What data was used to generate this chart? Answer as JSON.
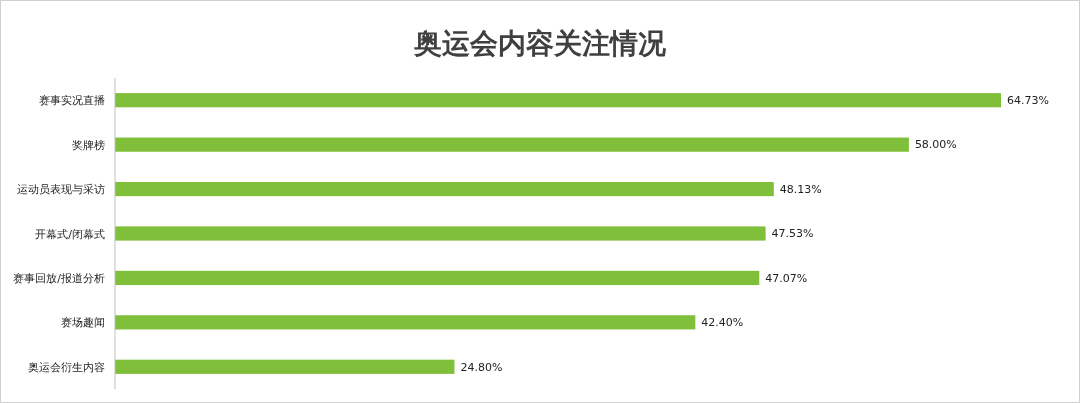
{
  "chart_data": {
    "type": "bar",
    "orientation": "horizontal",
    "relative": false,
    "title": "奥运会内容关注情况",
    "categories": [
      "赛事实况直播",
      "奖牌榜",
      "运动员表现与采访",
      "开幕式/闭幕式",
      "赛事回放/报道分析",
      "赛场趣闻",
      "奥运会衍生内容"
    ],
    "values": [
      64.73,
      58.0,
      48.13,
      47.53,
      47.07,
      42.4,
      24.8
    ],
    "value_labels": [
      "64.73%",
      "58.00%",
      "48.13%",
      "47.53%",
      "47.07%",
      "42.40%",
      "24.80%"
    ],
    "color": "#80bf3a"
  }
}
